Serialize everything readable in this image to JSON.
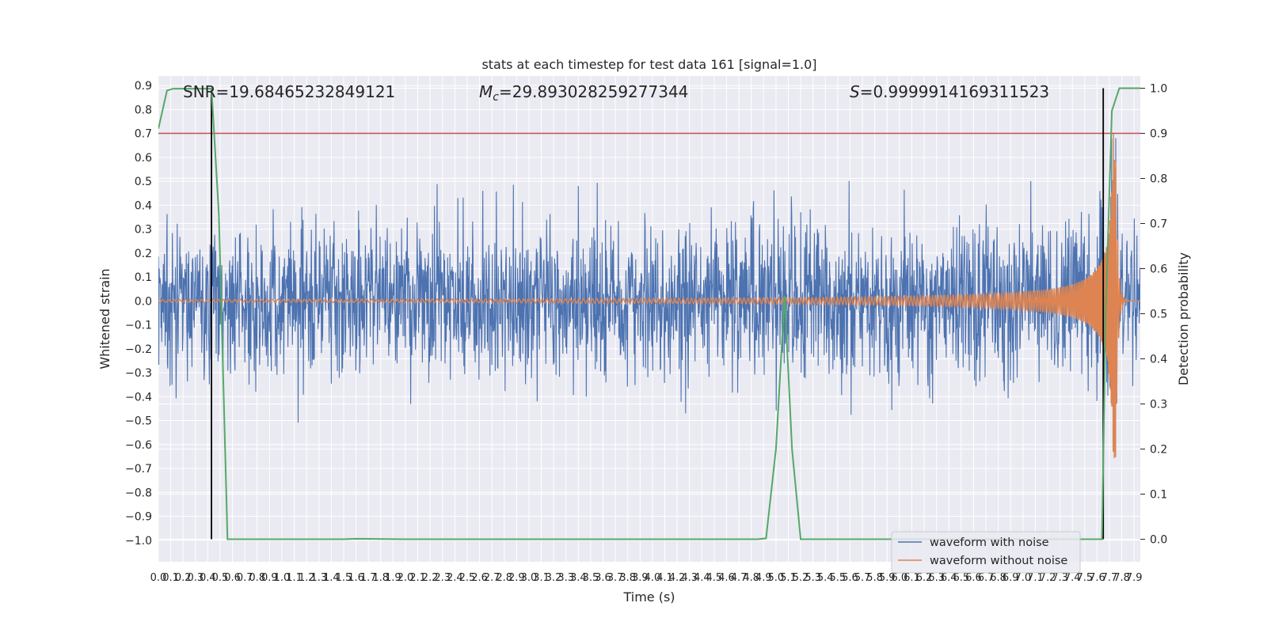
{
  "chart_data": {
    "type": "line",
    "title": "stats at each timestep for test data 161 [signal=1.0]",
    "xlabel": "Time (s)",
    "ylabel": "Whitened strain",
    "y2label": "Detection probability",
    "xlim": [
      0,
      7.95
    ],
    "ylim": [
      -1.09,
      0.94
    ],
    "y2lim": [
      -0.05,
      1.0272
    ],
    "xticks": [
      "0.0",
      "0.1",
      "0.2",
      "0.3",
      "0.4",
      "0.5",
      "0.6",
      "0.7",
      "0.8",
      "0.9",
      "1.0",
      "1.1",
      "1.2",
      "1.3",
      "1.4",
      "1.5",
      "1.6",
      "1.7",
      "1.8",
      "1.9",
      "2.0",
      "2.1",
      "2.2",
      "2.3",
      "2.4",
      "2.5",
      "2.6",
      "2.7",
      "2.8",
      "2.9",
      "3.0",
      "3.1",
      "3.2",
      "3.3",
      "3.4",
      "3.5",
      "3.6",
      "3.7",
      "3.8",
      "3.9",
      "4.0",
      "4.1",
      "4.2",
      "4.3",
      "4.4",
      "4.5",
      "4.6",
      "4.7",
      "4.8",
      "4.9",
      "5.0",
      "5.1",
      "5.2",
      "5.3",
      "5.4",
      "5.5",
      "5.6",
      "5.7",
      "5.8",
      "5.9",
      "6.0",
      "6.1",
      "6.2",
      "6.3",
      "6.4",
      "6.5",
      "6.6",
      "6.7",
      "6.8",
      "6.9",
      "7.0",
      "7.1",
      "7.2",
      "7.3",
      "7.4",
      "7.5",
      "7.6",
      "7.7",
      "7.8",
      "7.9"
    ],
    "yticks": [
      "0.9",
      "0.8",
      "0.7",
      "0.6",
      "0.5",
      "0.4",
      "0.3",
      "0.2",
      "0.1",
      "0.0",
      "−0.1",
      "−0.2",
      "−0.3",
      "−0.4",
      "−0.5",
      "−0.6",
      "−0.7",
      "−0.8",
      "−0.9",
      "−1.0"
    ],
    "y2ticks": [
      "1.0",
      "0.9",
      "0.8",
      "0.7",
      "0.6",
      "0.5",
      "0.4",
      "0.3",
      "0.2",
      "0.1",
      "0.0"
    ],
    "grid": true,
    "legend_placement": "lower-right",
    "annotations": {
      "snr": "SNR=19.68465232849121",
      "mc_symbol": "M",
      "mc_sub": "c",
      "mc_value": "=29.893028259277344",
      "s_symbol": "S",
      "s_value": "=0.9999914169311523"
    },
    "threshold": 0.9,
    "detection_markers_x": [
      0.43,
      7.65
    ],
    "series": [
      {
        "name": "waveform with noise",
        "color": "#4c72b0",
        "noise_std": 0.16,
        "seed": 161
      },
      {
        "name": "waveform without noise",
        "color": "#dd8452",
        "chirp": {
          "t_start": 0.0,
          "t_merge": 7.75,
          "t_ringdown_end": 7.85,
          "peak_amplitude": 0.7,
          "peak_frequency_hz": 60
        }
      },
      {
        "name": "detection probability",
        "color": "#55a868",
        "x": [
          0.0,
          0.07,
          0.12,
          0.2,
          0.3,
          0.4,
          0.43,
          0.49,
          0.56,
          1.0,
          1.5,
          1.6,
          2.0,
          3.0,
          4.0,
          4.85,
          4.92,
          5.0,
          5.07,
          5.13,
          5.2,
          6.0,
          7.0,
          7.62,
          7.64,
          7.67,
          7.72,
          7.78,
          7.95
        ],
        "values": [
          0.91,
          0.995,
          0.999,
          0.999,
          0.999,
          0.999,
          0.999,
          0.72,
          0.0,
          0.0,
          0.0,
          0.001,
          0.0,
          0.0,
          0.0,
          0.0,
          0.002,
          0.2,
          0.54,
          0.2,
          0.0,
          0.0,
          0.0,
          0.0,
          0.0,
          0.5,
          0.95,
          1.0,
          1.0
        ]
      },
      {
        "name": "threshold",
        "color": "#c44e52"
      },
      {
        "name": "detection",
        "color": "#000000"
      }
    ]
  }
}
